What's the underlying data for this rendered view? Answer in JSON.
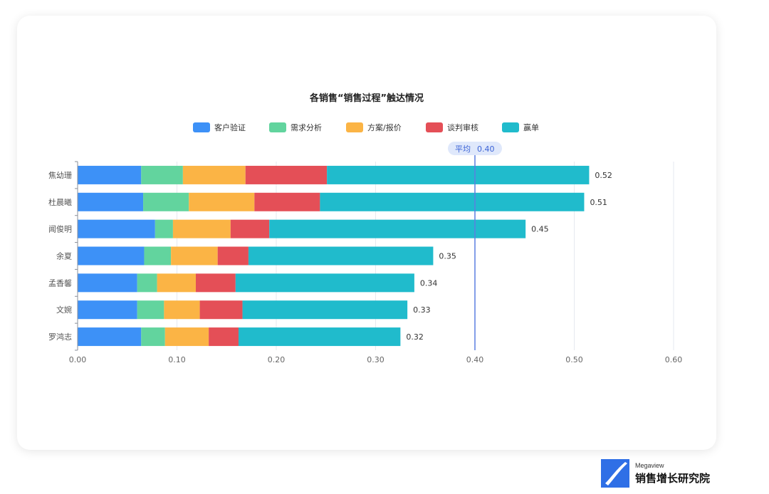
{
  "chart_data": {
    "type": "bar",
    "orientation": "horizontal",
    "stacked": true,
    "title": "各销售“销售过程”触达情况",
    "categories": [
      "焦幼珊",
      "杜晨曦",
      "闻俊明",
      "余夏",
      "孟香馨",
      "文婉",
      "罗鸿志"
    ],
    "series": [
      {
        "name": "客户验证",
        "color": "#3d91f7",
        "values": [
          0.064,
          0.066,
          0.078,
          0.067,
          0.06,
          0.06,
          0.064
        ]
      },
      {
        "name": "需求分析",
        "color": "#62d49e",
        "values": [
          0.042,
          0.046,
          0.018,
          0.027,
          0.02,
          0.027,
          0.024
        ]
      },
      {
        "name": "方案/报价",
        "color": "#fbb445",
        "values": [
          0.063,
          0.066,
          0.058,
          0.047,
          0.039,
          0.036,
          0.044
        ]
      },
      {
        "name": "谈判审核",
        "color": "#e44f57",
        "values": [
          0.082,
          0.066,
          0.039,
          0.031,
          0.04,
          0.043,
          0.03
        ]
      },
      {
        "name": "赢单",
        "color": "#20bbcc",
        "values": [
          0.264,
          0.266,
          0.258,
          0.186,
          0.18,
          0.166,
          0.163
        ]
      }
    ],
    "totals": [
      "0.52",
      "0.51",
      "0.45",
      "0.35",
      "0.34",
      "0.33",
      "0.32"
    ],
    "xlim": [
      0,
      0.6
    ],
    "xticks": [
      "0.00",
      "0.10",
      "0.20",
      "0.30",
      "0.40",
      "0.50",
      "0.60"
    ],
    "xtick_values": [
      0,
      0.1,
      0.2,
      0.3,
      0.4,
      0.5,
      0.6
    ],
    "average": {
      "label": "平均",
      "value_text": "0.40",
      "value": 0.4
    },
    "legend_position": "top-center",
    "grid": "vertical"
  },
  "brand": {
    "small": "Megaview",
    "name": "销售增长研究院",
    "color": "#2f6fe6"
  }
}
